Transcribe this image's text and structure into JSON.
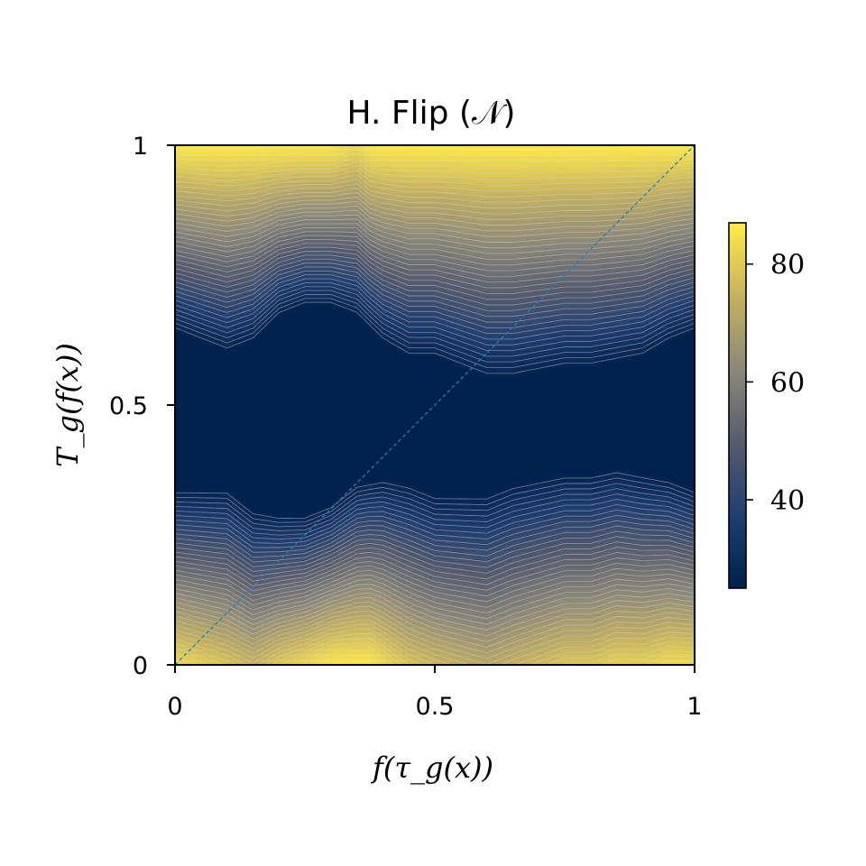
{
  "chart_data": {
    "type": "heatmap",
    "title": "H. Flip (𝒩)",
    "xlabel": "f(τ_g(x))",
    "ylabel": "T_g(f(x))",
    "xlim": [
      0,
      1
    ],
    "ylim": [
      0,
      1
    ],
    "x_ticks": [
      "0",
      "0.5",
      "1"
    ],
    "y_ticks": [
      "0",
      "0.5",
      "1"
    ],
    "x_tick_values": [
      0,
      0.5,
      1
    ],
    "y_tick_values": [
      0,
      0.5,
      1
    ],
    "colormap": "cividis",
    "colorbar": {
      "range": [
        25,
        87
      ],
      "ticks": [
        "40",
        "60",
        "80"
      ],
      "tick_values": [
        40,
        60,
        80
      ]
    },
    "diagonal_reference_line": {
      "from": [
        0,
        0
      ],
      "to": [
        1,
        1
      ],
      "style": "dashed",
      "color": "#2a7fb0"
    },
    "contour_lines": 40,
    "grid": false,
    "legend": "none",
    "grid_x": [
      0,
      0.05,
      0.1,
      0.15,
      0.2,
      0.25,
      0.3,
      0.35,
      0.4,
      0.45,
      0.5,
      0.55,
      0.6,
      0.65,
      0.7,
      0.75,
      0.8,
      0.85,
      0.9,
      0.95,
      1.0
    ],
    "valley_center_y": [
      0.49,
      0.48,
      0.47,
      0.46,
      0.48,
      0.49,
      0.5,
      0.51,
      0.49,
      0.47,
      0.46,
      0.45,
      0.44,
      0.45,
      0.46,
      0.47,
      0.47,
      0.48,
      0.48,
      0.49,
      0.49
    ],
    "valley_halfwidth": [
      0.15,
      0.14,
      0.13,
      0.16,
      0.19,
      0.2,
      0.19,
      0.16,
      0.13,
      0.12,
      0.13,
      0.12,
      0.11,
      0.1,
      0.1,
      0.1,
      0.1,
      0.1,
      0.11,
      0.13,
      0.15
    ],
    "valley_min_value": 25,
    "max_value": 87
  }
}
